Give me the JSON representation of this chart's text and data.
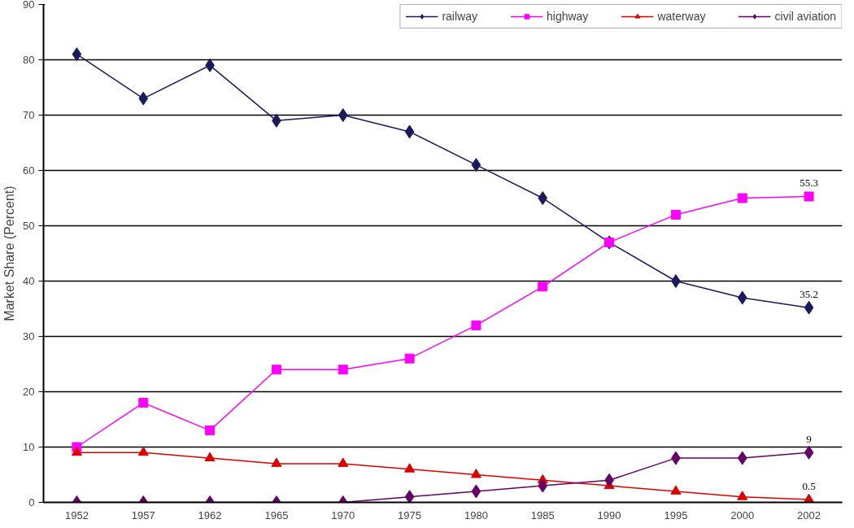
{
  "chart_data": {
    "type": "line",
    "ylabel": "Market Share (Percent)",
    "categories": [
      "1952",
      "1957",
      "1962",
      "1965",
      "1970",
      "1975",
      "1980",
      "1985",
      "1990",
      "1995",
      "2000",
      "2002"
    ],
    "series": [
      {
        "name": "railway",
        "color": "#1a1a5e",
        "marker": "diamond",
        "values": [
          81,
          73,
          79,
          69,
          70,
          67,
          61,
          55,
          47,
          40,
          37,
          35.2
        ],
        "value_labels": [
          null,
          null,
          null,
          null,
          null,
          null,
          null,
          null,
          null,
          null,
          null,
          "35.2"
        ]
      },
      {
        "name": "highway",
        "color": "#ff00ff",
        "marker": "square",
        "values": [
          10,
          18,
          13,
          24,
          24,
          26,
          32,
          39,
          47,
          52,
          55,
          55.3
        ],
        "value_labels": [
          null,
          null,
          null,
          null,
          null,
          null,
          null,
          null,
          null,
          null,
          null,
          "55.3"
        ]
      },
      {
        "name": "waterway",
        "color": "#dd0000",
        "marker": "triangle",
        "values": [
          9,
          9,
          8,
          7,
          7,
          6,
          5,
          4,
          3,
          2,
          1,
          0.5
        ],
        "value_labels": [
          null,
          null,
          null,
          null,
          null,
          null,
          null,
          null,
          null,
          null,
          null,
          "0.5"
        ]
      },
      {
        "name": "civil aviation",
        "color": "#660066",
        "marker": "diamond",
        "values": [
          0,
          0,
          0,
          0,
          0,
          1,
          2,
          3,
          4,
          8,
          8,
          9
        ],
        "value_labels": [
          null,
          null,
          null,
          null,
          null,
          null,
          null,
          null,
          null,
          null,
          null,
          "9"
        ]
      }
    ],
    "ylim": [
      0,
      90
    ],
    "yticks": [
      0,
      10,
      20,
      30,
      40,
      50,
      60,
      70,
      80,
      90
    ],
    "grid": "y",
    "legend": "top",
    "line_style": "solid"
  }
}
